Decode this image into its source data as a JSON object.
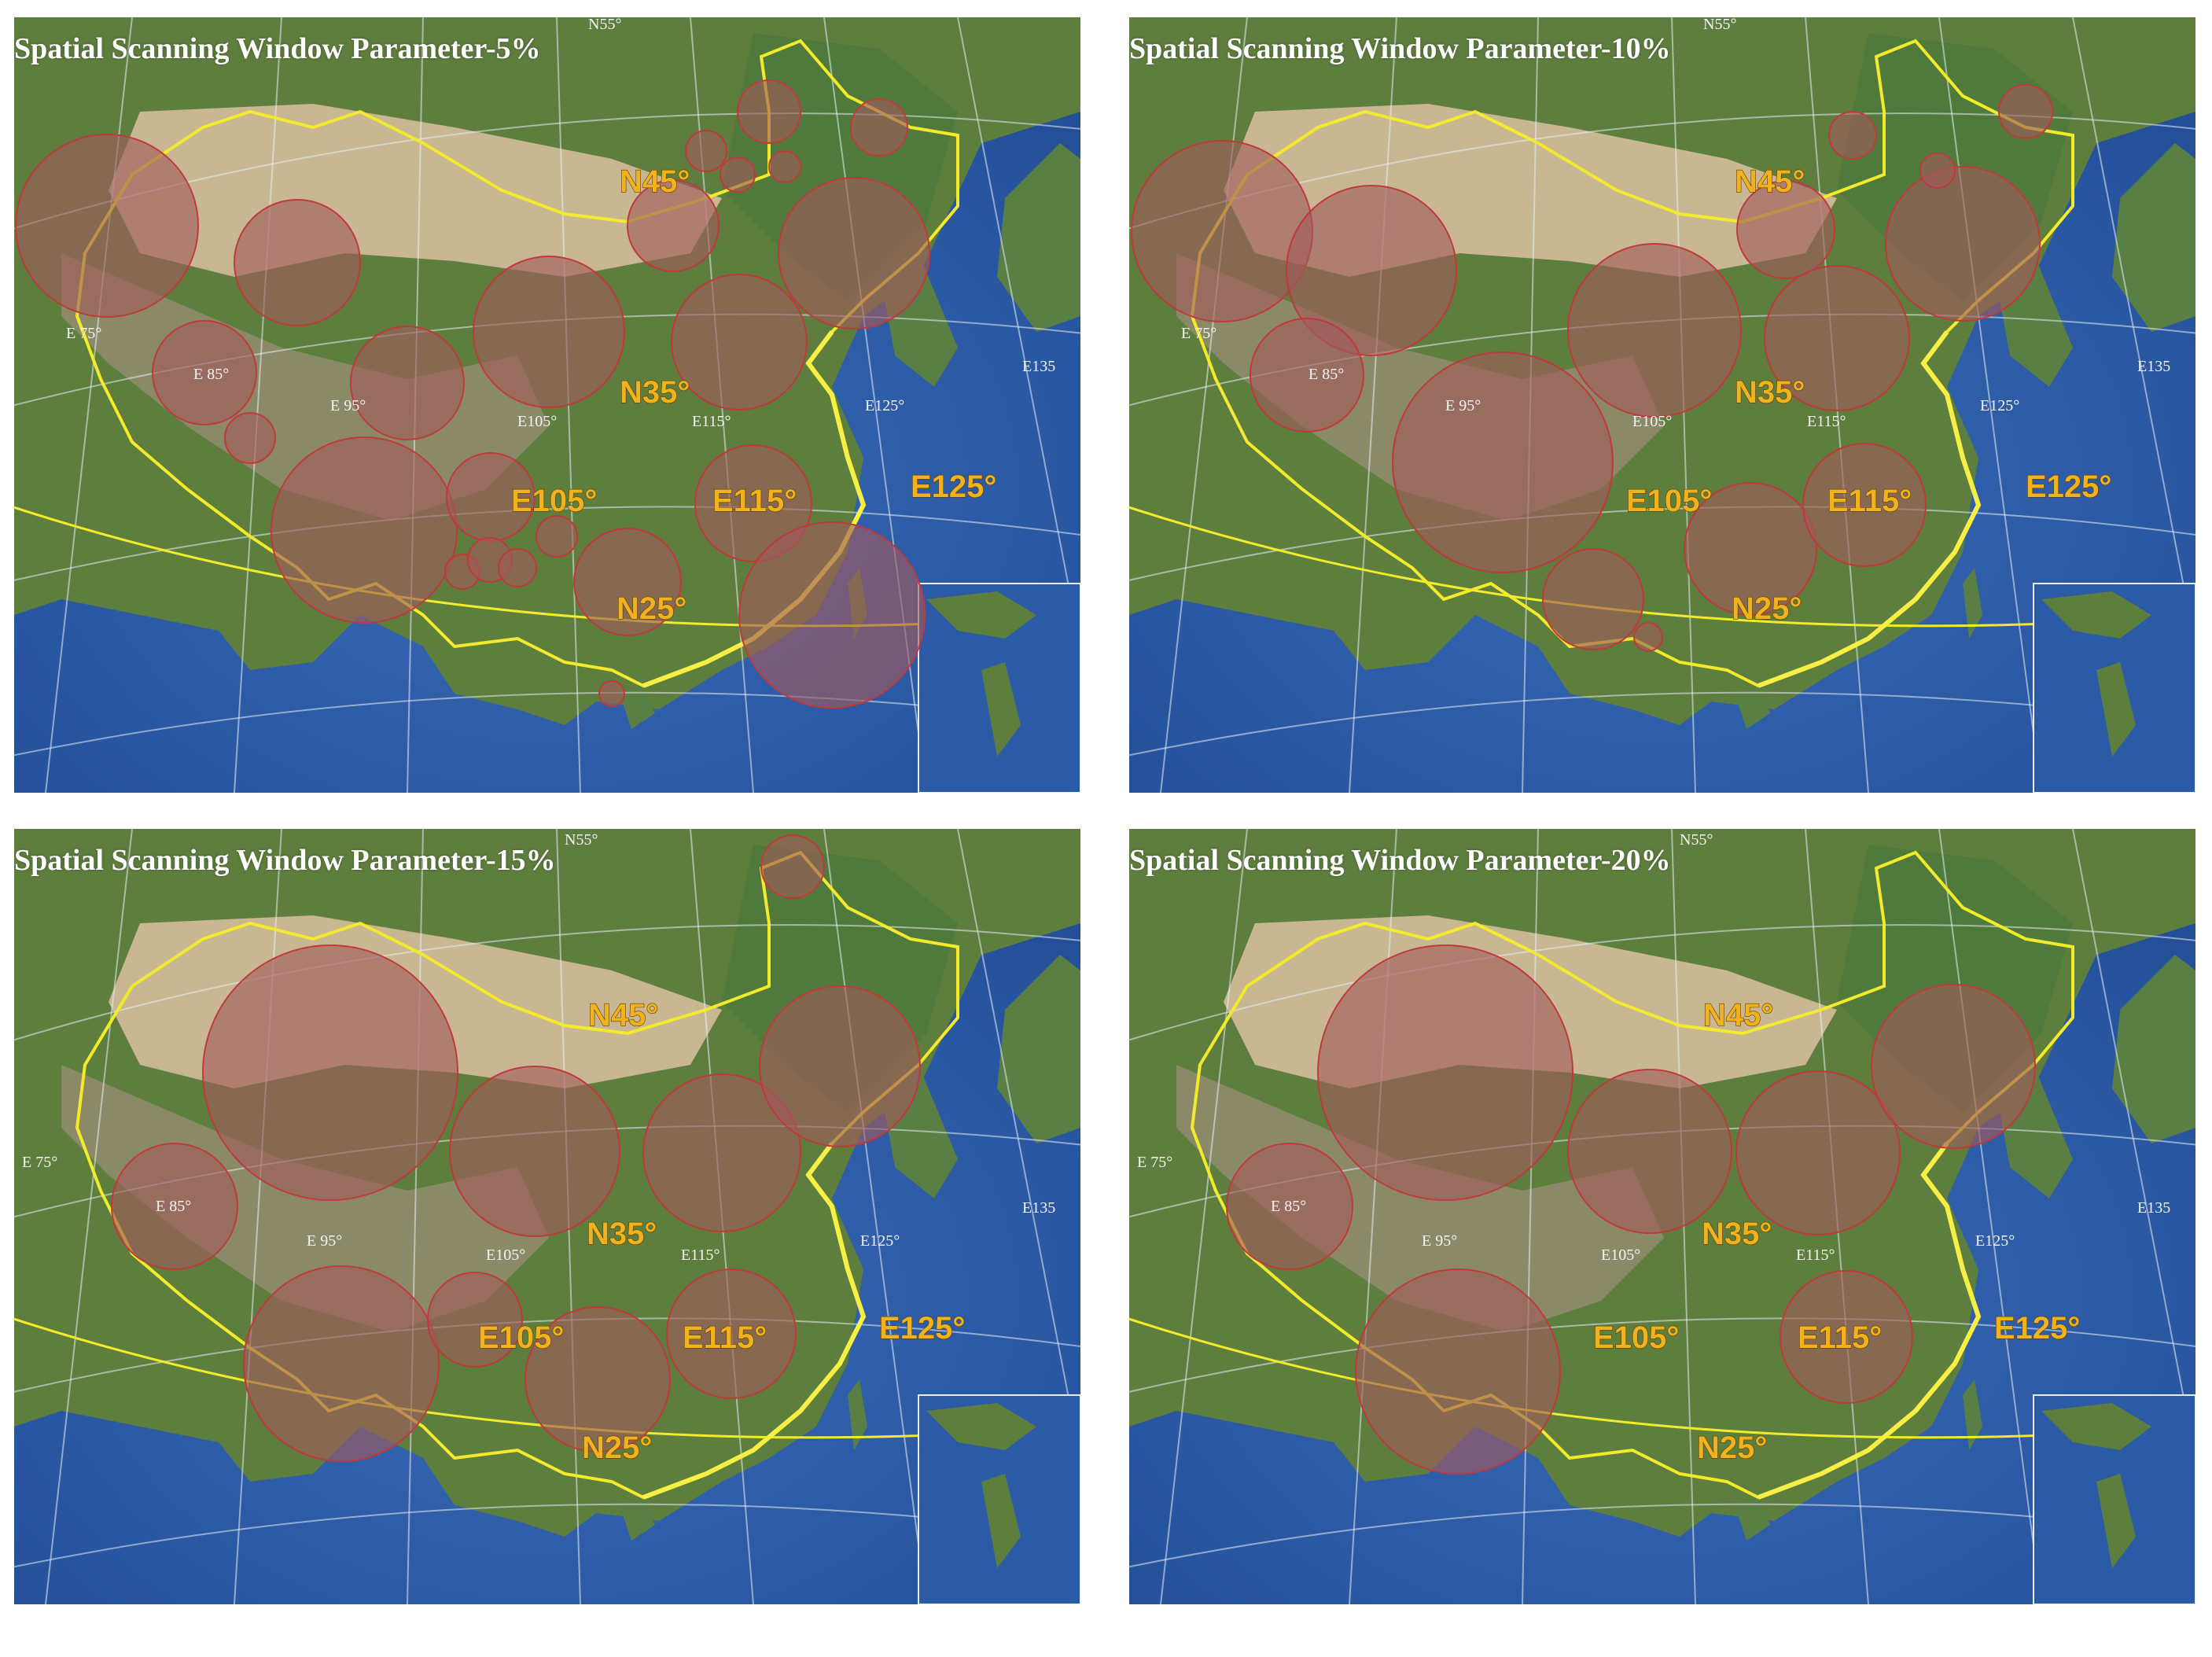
{
  "colors": {
    "ocean": "#2b5aa6",
    "land": "#5e7e3e",
    "desert": "#c9b793",
    "border": "#f2ea2a",
    "label": "#f2b21d",
    "cluster_fill": "#a15a5c",
    "cluster_stroke": "#c03a3a",
    "grid": "#e8eef5"
  },
  "panels": [
    {
      "title": "Spatial Scanning  Window Parameter-5%",
      "big_labels": [
        "N45°",
        "N35°",
        "N25°",
        "E105°",
        "E115°",
        "E125°"
      ],
      "small_labels": [
        "E 75°",
        "E 85°",
        "E 95°",
        "E105°",
        "E115°",
        "E125°",
        "E135",
        "N55°"
      ]
    },
    {
      "title": "Spatial Scanning  Window Parameter-10%",
      "big_labels": [
        "N45°",
        "N35°",
        "N25°",
        "E105°",
        "E115°",
        "E125°"
      ],
      "small_labels": [
        "E 75°",
        "E 85°",
        "E 95°",
        "E105°",
        "E115°",
        "E125°",
        "E135",
        "N55°"
      ]
    },
    {
      "title": "Spatial Scanning  Window Parameter-15%",
      "big_labels": [
        "N45°",
        "N35°",
        "N25°",
        "E105°",
        "E115°",
        "E125°"
      ],
      "small_labels": [
        "E 75°",
        "E 85°",
        "E 95°",
        "E105°",
        "E115°",
        "E125°",
        "E135",
        "N55°"
      ]
    },
    {
      "title": "Spatial Scanning  Window Parameter-20%",
      "big_labels": [
        "N45°",
        "N35°",
        "N25°",
        "E105°",
        "E115°",
        "E125°"
      ],
      "small_labels": [
        "E 75°",
        "E 85°",
        "E 95°",
        "E105°",
        "E115°",
        "E125°",
        "E135",
        "N55°"
      ]
    }
  ]
}
